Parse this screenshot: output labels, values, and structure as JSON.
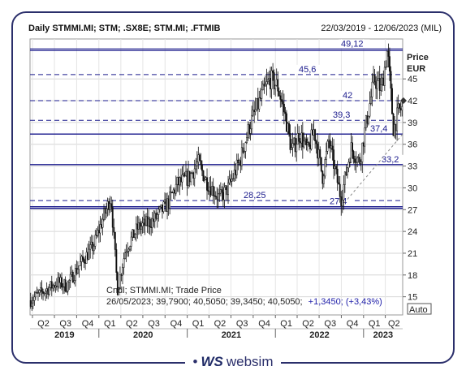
{
  "header": {
    "title": "Daily STMMI.MI; STM; .SX8E; STM.MI; .FTMIB",
    "date_range": "22/03/2019 - 12/06/2023 (MIL)"
  },
  "info": {
    "line1": "Cndl; STMMI.MI; Trade Price",
    "line2_values": "26/05/2023; 39,7900; 40,5050; 39,3450; 40,5050;",
    "line2_change": "+1,3450; (+3,43%)"
  },
  "auto_button": "Auto",
  "logo": {
    "text": "websim"
  },
  "colors": {
    "level_line": "#1a1a8c",
    "candle": "#111111",
    "change": "#2222aa"
  },
  "chart_data": {
    "type": "candlestick",
    "ylabel": "Price\nEUR",
    "ylim": [
      12.5,
      50.5
    ],
    "y_ticks": [
      15,
      18,
      21,
      24,
      27,
      30,
      33,
      36,
      39,
      42,
      45
    ],
    "grid": true,
    "quarter_ticks": [
      "Q2",
      "Q3",
      "Q4",
      "Q1",
      "Q2",
      "Q3",
      "Q4",
      "Q1",
      "Q2",
      "Q3",
      "Q4",
      "Q1",
      "Q2",
      "Q3",
      "Q4",
      "Q1",
      "Q2"
    ],
    "years": [
      "2019",
      "2020",
      "2021",
      "2022",
      "2023"
    ],
    "x_start": "2019-03-22",
    "x_end": "2023-06-12",
    "levels": [
      {
        "value": 49.12,
        "label": "49,12",
        "style": "solid"
      },
      {
        "value": 45.6,
        "label": "45,6",
        "style": "dashed"
      },
      {
        "value": 42,
        "label": "42",
        "style": "dashed"
      },
      {
        "value": 39.3,
        "label": "39,3",
        "style": "dashed"
      },
      {
        "value": 37.4,
        "label": "37,4",
        "style": "solid"
      },
      {
        "value": 33.2,
        "label": "33,2",
        "style": "solid"
      },
      {
        "value": 28.25,
        "label": "28,25",
        "style": "dashed"
      },
      {
        "value": 27.4,
        "label": "27,4",
        "style": "solid"
      }
    ],
    "trendline": {
      "from": {
        "date": "2022-09-30",
        "value": 27.4
      },
      "to": {
        "date": "2023-06-12",
        "value": 37.4
      }
    },
    "price_path": [
      {
        "date": "2019-03-22",
        "value": 14.5
      },
      {
        "date": "2019-05-20",
        "value": 15.8
      },
      {
        "date": "2019-07-15",
        "value": 17.0
      },
      {
        "date": "2019-08-20",
        "value": 16.5
      },
      {
        "date": "2019-10-15",
        "value": 19.5
      },
      {
        "date": "2019-12-10",
        "value": 22.0
      },
      {
        "date": "2020-01-15",
        "value": 25.5
      },
      {
        "date": "2020-02-20",
        "value": 28.8
      },
      {
        "date": "2020-03-18",
        "value": 16.0
      },
      {
        "date": "2020-04-20",
        "value": 21.5
      },
      {
        "date": "2020-06-10",
        "value": 24.5
      },
      {
        "date": "2020-08-15",
        "value": 25.5
      },
      {
        "date": "2020-10-15",
        "value": 28.0
      },
      {
        "date": "2020-11-20",
        "value": 30.5
      },
      {
        "date": "2021-01-10",
        "value": 31.5
      },
      {
        "date": "2021-02-15",
        "value": 33.5
      },
      {
        "date": "2021-03-20",
        "value": 31.0
      },
      {
        "date": "2021-05-15",
        "value": 28.5
      },
      {
        "date": "2021-06-20",
        "value": 30.0
      },
      {
        "date": "2021-08-10",
        "value": 34.0
      },
      {
        "date": "2021-09-15",
        "value": 38.5
      },
      {
        "date": "2021-11-10",
        "value": 43.0
      },
      {
        "date": "2021-12-10",
        "value": 45.0
      },
      {
        "date": "2022-01-10",
        "value": 44.0
      },
      {
        "date": "2022-02-10",
        "value": 40.0
      },
      {
        "date": "2022-03-10",
        "value": 35.0
      },
      {
        "date": "2022-04-10",
        "value": 37.5
      },
      {
        "date": "2022-05-15",
        "value": 35.0
      },
      {
        "date": "2022-06-10",
        "value": 38.0
      },
      {
        "date": "2022-07-15",
        "value": 31.5
      },
      {
        "date": "2022-08-10",
        "value": 36.5
      },
      {
        "date": "2022-09-30",
        "value": 28.5
      },
      {
        "date": "2022-11-10",
        "value": 35.5
      },
      {
        "date": "2022-12-15",
        "value": 33.5
      },
      {
        "date": "2023-01-15",
        "value": 39.5
      },
      {
        "date": "2023-02-15",
        "value": 45.0
      },
      {
        "date": "2023-03-15",
        "value": 43.5
      },
      {
        "date": "2023-04-10",
        "value": 49.0
      },
      {
        "date": "2023-05-05",
        "value": 38.0
      },
      {
        "date": "2023-05-26",
        "value": 40.5
      },
      {
        "date": "2023-06-12",
        "value": 41.0
      }
    ]
  }
}
